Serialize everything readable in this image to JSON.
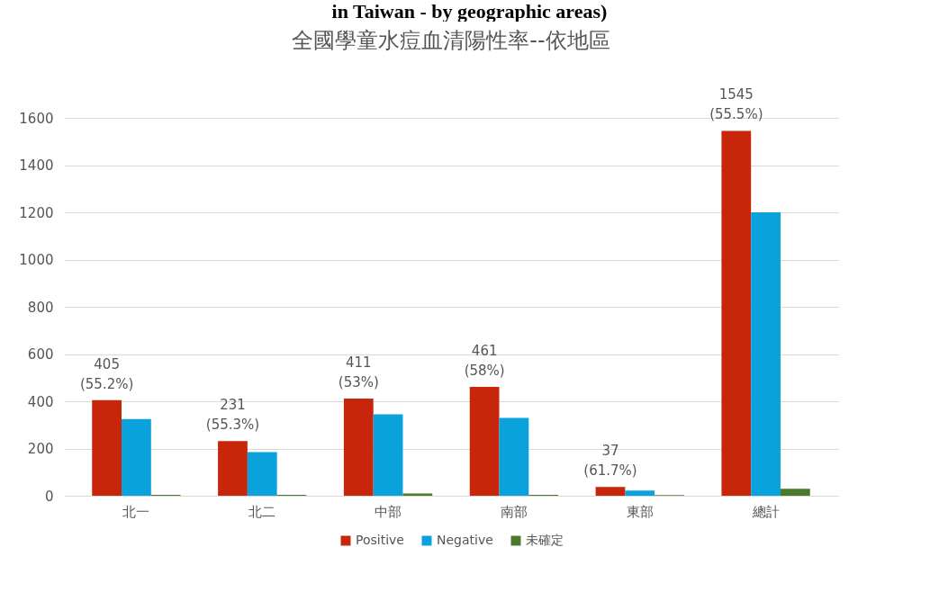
{
  "chart_data": {
    "type": "bar",
    "title": "全國學童水痘血清陽性率--依地區",
    "annotations": [
      "in Taiwan - by geographic areas)"
    ],
    "categories": [
      "北一",
      "北二",
      "中部",
      "南部",
      "東部",
      "總計"
    ],
    "series": [
      {
        "name": "Positive",
        "color": "#c8260a",
        "values": [
          405,
          231,
          411,
          461,
          37,
          1545
        ],
        "value_labels": [
          "405\n(55.2%)",
          "231\n(55.3%)",
          "411\n(53%)",
          "461\n(58%)",
          "37\n(61.7%)",
          "1545\n(55.5%)"
        ]
      },
      {
        "name": "Negative",
        "color": "#0aa2dc",
        "values": [
          325,
          185,
          345,
          330,
          22,
          1200
        ]
      },
      {
        "name": "未確定",
        "color": "#4a7a2a",
        "values": [
          4,
          4,
          10,
          4,
          3,
          30
        ]
      }
    ],
    "ylim": [
      0,
      1600
    ],
    "yticks": [
      0,
      200,
      400,
      600,
      800,
      1000,
      1200,
      1400,
      1600
    ],
    "grid": "y",
    "legend": "bottom"
  }
}
